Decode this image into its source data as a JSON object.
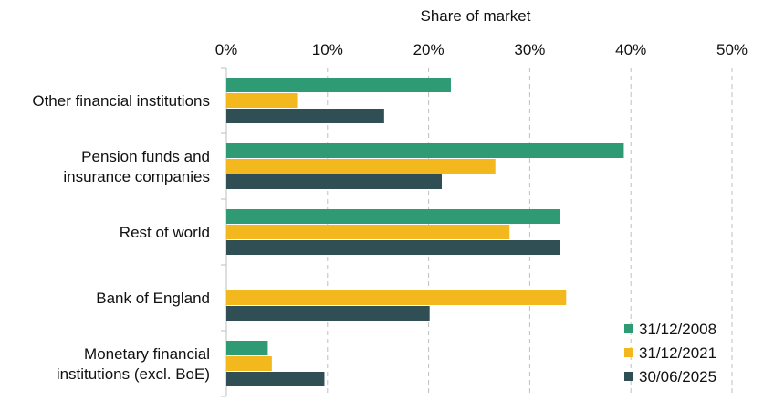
{
  "chart_data": {
    "type": "bar",
    "orientation": "horizontal",
    "title": "",
    "xlabel": "Share of market",
    "ylabel": "",
    "xlim": [
      0,
      50
    ],
    "x_ticks": [
      "0%",
      "10%",
      "20%",
      "30%",
      "40%",
      "50%"
    ],
    "x_tick_values": [
      0,
      10,
      20,
      30,
      40,
      50
    ],
    "grid": "vertical dashed",
    "legend_position": "bottom-right",
    "categories": [
      [
        "Other financial institutions"
      ],
      [
        "Pension funds and",
        "insurance companies"
      ],
      [
        "Rest of world"
      ],
      [
        "Bank of England"
      ],
      [
        "Monetary financial",
        "institutions (excl. BoE)"
      ]
    ],
    "series": [
      {
        "name": "31/12/2008",
        "color": "#2e9b74",
        "values": [
          22.2,
          39.3,
          33.0,
          null,
          4.1
        ]
      },
      {
        "name": "31/12/2021",
        "color": "#f2b81d",
        "values": [
          7.0,
          26.6,
          28.0,
          33.6,
          4.5
        ]
      },
      {
        "name": "30/06/2025",
        "color": "#2f4f55",
        "values": [
          15.6,
          21.3,
          33.0,
          20.1,
          9.7
        ]
      }
    ]
  }
}
